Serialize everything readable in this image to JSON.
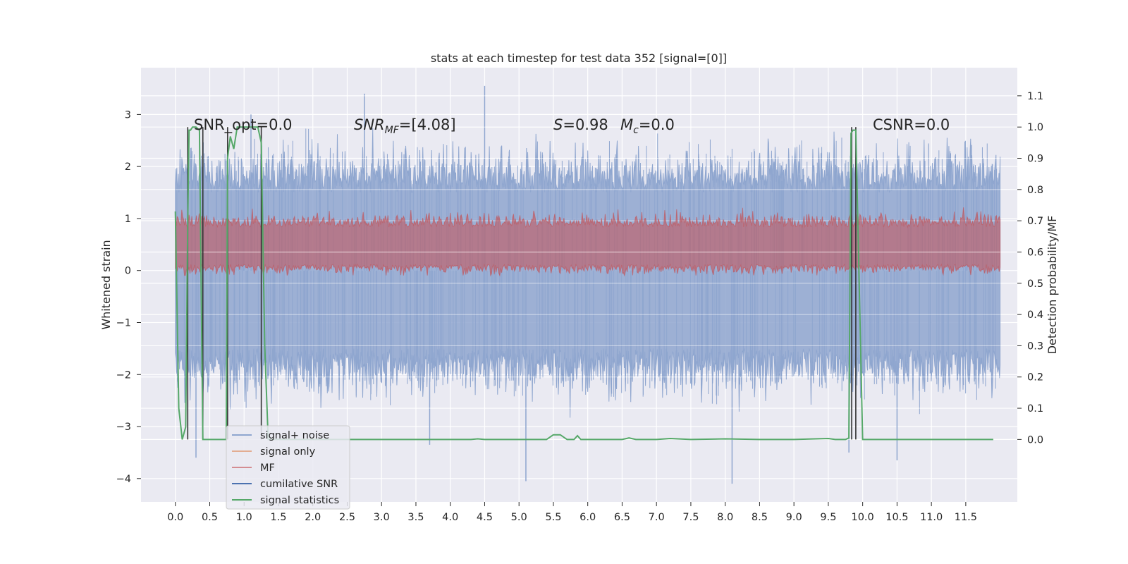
{
  "chart_data": {
    "type": "line",
    "title": "stats at each timestep for test data 352 [signal=[0]]",
    "xlabel": "",
    "ylabel": "Whitened strain",
    "y2label": "Detection probability/MF",
    "xlim": [
      -0.5,
      12.25
    ],
    "ylim": [
      -4.45,
      3.9
    ],
    "y2lim": [
      -0.2,
      1.19
    ],
    "x_ticks": [
      "0.0",
      "0.5",
      "1.0",
      "1.5",
      "2.0",
      "2.5",
      "3.0",
      "3.5",
      "4.0",
      "4.5",
      "5.0",
      "5.5",
      "6.0",
      "6.5",
      "7.0",
      "7.5",
      "8.0",
      "8.5",
      "9.0",
      "9.5",
      "10.0",
      "10.5",
      "11.0",
      "11.5"
    ],
    "y_ticks": [
      "3",
      "2",
      "1",
      "0",
      "−1",
      "−2",
      "−3",
      "−4"
    ],
    "y2_ticks": [
      "1.1",
      "1.0",
      "0.9",
      "0.8",
      "0.7",
      "0.6",
      "0.5",
      "0.4",
      "0.3",
      "0.2",
      "0.1",
      "0.0"
    ],
    "grid": true,
    "legend_position": "lower-left",
    "annotations": {
      "snr_opt": "SNR_opt=0.0",
      "snr_mf_main": "SNR",
      "snr_mf_sub": "MF",
      "snr_mf_rest": "=[4.08]",
      "s_main": "S",
      "s_rest": "=0.98",
      "mc_main": "M",
      "mc_sub": "c",
      "mc_rest": "=0.0",
      "csnr": "CSNR=0.0"
    },
    "series": [
      {
        "name": "signal+ noise",
        "color": "#8fa6cf",
        "axis": "left",
        "description_range": [
          -2.8,
          3.0
        ],
        "x_range": [
          0.0,
          12.0
        ],
        "spikes": [
          [
            2.75,
            3.4
          ],
          [
            4.5,
            3.55
          ],
          [
            1.1,
            3.0
          ],
          [
            5.1,
            -4.05
          ],
          [
            8.1,
            -4.1
          ],
          [
            0.3,
            -3.6
          ],
          [
            10.5,
            -3.65
          ],
          [
            9.8,
            -3.5
          ],
          [
            3.7,
            -3.35
          ]
        ]
      },
      {
        "name": "signal only",
        "color": "#dd8452",
        "axis": "left"
      },
      {
        "name": "MF",
        "color": "#c44e52",
        "axis": "right",
        "band": [
          0.53,
          0.72
        ]
      },
      {
        "name": "cumilative SNR",
        "color": "#4c72b0",
        "axis": "left"
      },
      {
        "name": "signal statistics",
        "color": "#55a868",
        "axis": "right",
        "x": [
          0.0,
          0.05,
          0.1,
          0.15,
          0.18,
          0.2,
          0.22,
          0.25,
          0.3,
          0.35,
          0.4,
          0.45,
          0.5,
          0.55,
          0.6,
          0.7,
          0.74,
          0.76,
          0.8,
          0.85,
          0.9,
          0.95,
          1.0,
          1.1,
          1.2,
          1.25,
          1.3,
          1.35,
          1.4,
          1.5,
          2.0,
          3.0,
          4.0,
          4.3,
          4.4,
          4.5,
          5.0,
          5.4,
          5.5,
          5.6,
          5.7,
          5.8,
          5.85,
          5.9,
          6.0,
          6.5,
          6.6,
          6.7,
          7.0,
          7.2,
          7.5,
          8.0,
          8.5,
          9.0,
          9.5,
          9.6,
          9.75,
          9.8,
          9.83,
          9.86,
          9.9,
          10.0,
          10.5,
          11.0,
          11.5,
          11.9
        ],
        "y": [
          0.73,
          0.1,
          0.0,
          0.04,
          0.7,
          0.99,
          0.99,
          1.0,
          1.0,
          0.99,
          0.0,
          0.0,
          0.0,
          0.0,
          0.0,
          0.0,
          0.0,
          0.9,
          0.97,
          0.93,
          1.0,
          1.0,
          1.0,
          1.0,
          1.0,
          0.95,
          0.3,
          0.0,
          0.0,
          0.0,
          0.0,
          0.0,
          0.0,
          0.0,
          0.002,
          0.0,
          0.0,
          0.0,
          0.015,
          0.015,
          0.0,
          0.0,
          0.012,
          0.0,
          0.0,
          0.0,
          0.005,
          0.0,
          0.0,
          0.003,
          0.0,
          0.002,
          0.0,
          0.0,
          0.003,
          0.0,
          0.0,
          0.005,
          0.98,
          0.99,
          0.99,
          0.0,
          0.0,
          0.0,
          0.0,
          0.0
        ]
      }
    ],
    "vlines": [
      0.18,
      0.4,
      0.76,
      1.25,
      9.84,
      9.9
    ]
  }
}
